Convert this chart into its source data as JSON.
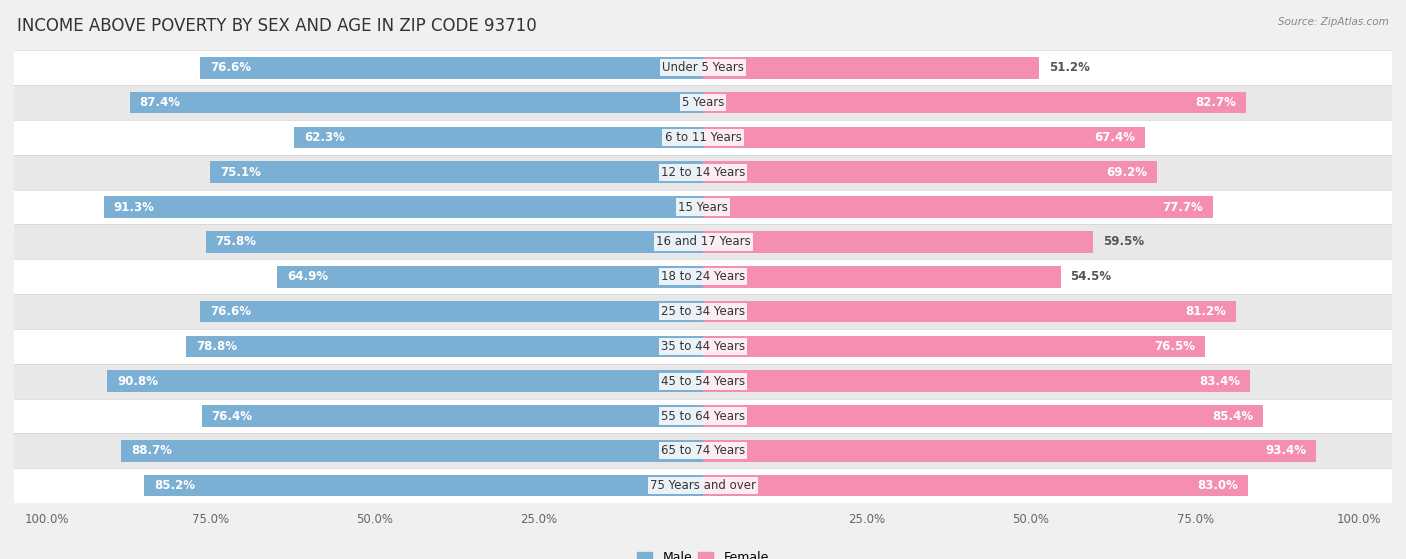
{
  "title": "INCOME ABOVE POVERTY BY SEX AND AGE IN ZIP CODE 93710",
  "source": "Source: ZipAtlas.com",
  "categories": [
    "Under 5 Years",
    "5 Years",
    "6 to 11 Years",
    "12 to 14 Years",
    "15 Years",
    "16 and 17 Years",
    "18 to 24 Years",
    "25 to 34 Years",
    "35 to 44 Years",
    "45 to 54 Years",
    "55 to 64 Years",
    "65 to 74 Years",
    "75 Years and over"
  ],
  "male": [
    76.6,
    87.4,
    62.3,
    75.1,
    91.3,
    75.8,
    64.9,
    76.6,
    78.8,
    90.8,
    76.4,
    88.7,
    85.2
  ],
  "female": [
    51.2,
    82.7,
    67.4,
    69.2,
    77.7,
    59.5,
    54.5,
    81.2,
    76.5,
    83.4,
    85.4,
    93.4,
    83.0
  ],
  "male_color": "#7bafd4",
  "female_color": "#f48fb1",
  "background_color": "#f0f0f0",
  "row_color_even": "#ffffff",
  "row_color_odd": "#e8e8e8",
  "bar_height": 0.62,
  "title_fontsize": 12,
  "label_fontsize": 8.5,
  "tick_fontsize": 8.5,
  "legend_fontsize": 9,
  "x_max": 100
}
